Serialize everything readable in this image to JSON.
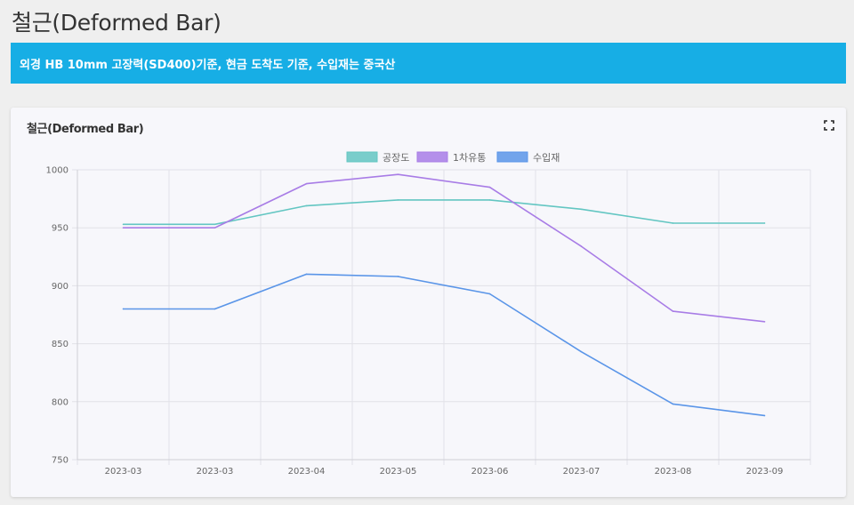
{
  "page": {
    "title": "철근(Deformed Bar)",
    "banner": "외경 HB 10mm 고장력(SD400)기준, 현금 도착도 기준, 수입재는 중국산"
  },
  "card": {
    "title": "철근(Deformed Bar)",
    "fullscreen_icon": "fullscreen-icon"
  },
  "chart_data": {
    "type": "line",
    "title": "철근(Deformed Bar)",
    "categories": [
      "2023-03",
      "2023-03",
      "2023-04",
      "2023-05",
      "2023-06",
      "2023-07",
      "2023-08",
      "2023-09"
    ],
    "series": [
      {
        "name": "공장도",
        "color": "#63c6c2",
        "values": [
          953,
          953,
          969,
          974,
          974,
          966,
          954,
          954
        ]
      },
      {
        "name": "1차유통",
        "color": "#a87ce6",
        "values": [
          950,
          950,
          988,
          996,
          985,
          934,
          878,
          869
        ]
      },
      {
        "name": "수입재",
        "color": "#5a95e8",
        "values": [
          880,
          880,
          910,
          908,
          893,
          843,
          798,
          788
        ]
      }
    ],
    "ylim": [
      750,
      1000
    ],
    "yticks": [
      750,
      800,
      850,
      900,
      950,
      1000
    ],
    "xlabel": "",
    "ylabel": "",
    "legend": "top-center",
    "grid": true
  }
}
